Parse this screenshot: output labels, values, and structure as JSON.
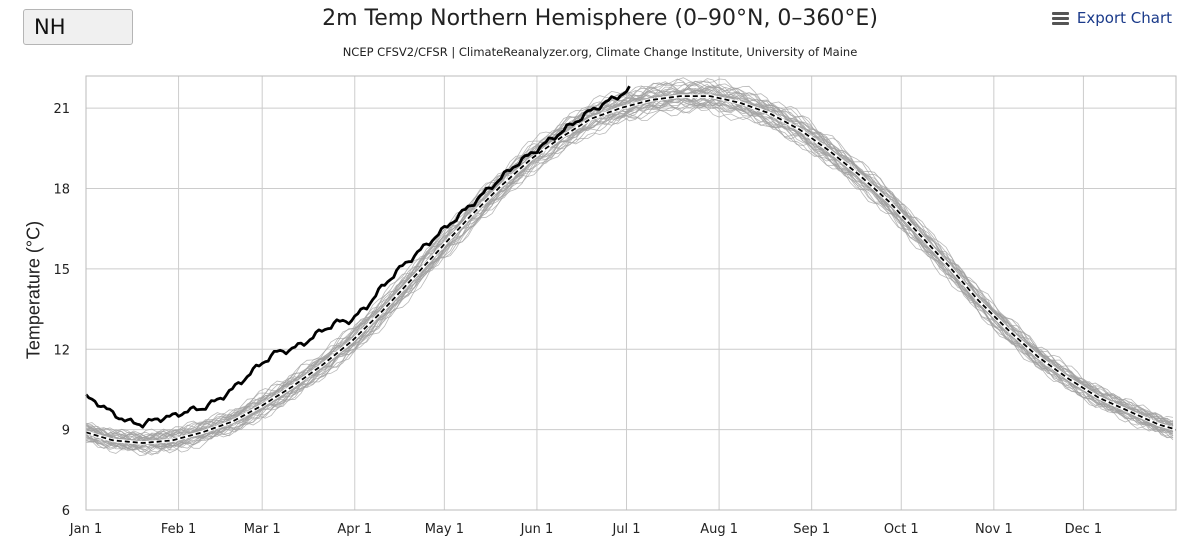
{
  "region_select": {
    "value": "NH"
  },
  "export_label": "Export Chart",
  "icons": {
    "export_menu": "hamburger-menu-icon"
  },
  "chart_data": {
    "type": "line",
    "title": "2m Temp Northern Hemisphere (0–90°N, 0–360°E)",
    "subtitle": "NCEP CFSV2/CFSR | ClimateReanalyzer.org, Climate Change Institute, University of Maine",
    "xlabel": "",
    "ylabel": "Temperature (°C)",
    "x_unit": "day of year",
    "xlim": [
      1,
      366
    ],
    "ylim": [
      6,
      22.2
    ],
    "yticks": [
      6,
      9,
      12,
      15,
      18,
      21
    ],
    "xtick_labels": [
      "Jan 1",
      "Feb 1",
      "Mar 1",
      "Apr 1",
      "May 1",
      "Jun 1",
      "Jul 1",
      "Aug 1",
      "Sep 1",
      "Oct 1",
      "Nov 1",
      "Dec 1"
    ],
    "xtick_days": [
      1,
      32,
      60,
      91,
      121,
      152,
      182,
      213,
      244,
      274,
      305,
      335
    ],
    "grid": true,
    "legend": "none",
    "colors": {
      "current_year": "#000000",
      "mean": "#000000",
      "past_years": "#a0a0a0",
      "grid": "#cccccc"
    },
    "series": [
      {
        "style": "solid-thick",
        "x": [
          1,
          5,
          10,
          15,
          20,
          25,
          30,
          35,
          40,
          45,
          50,
          55,
          60,
          65,
          70,
          75,
          80,
          85,
          90,
          95,
          100,
          105,
          110,
          115,
          120,
          125,
          130,
          135,
          140,
          145,
          150,
          155,
          160,
          165,
          170,
          175,
          180,
          183
        ],
        "values": [
          10.2,
          10.0,
          9.6,
          9.3,
          9.2,
          9.4,
          9.5,
          9.7,
          9.8,
          10.1,
          10.5,
          11.0,
          11.5,
          11.9,
          12.0,
          12.3,
          12.7,
          13.0,
          13.1,
          13.6,
          14.3,
          14.9,
          15.4,
          15.9,
          16.4,
          16.9,
          17.4,
          17.9,
          18.4,
          18.9,
          19.3,
          19.7,
          20.1,
          20.5,
          20.9,
          21.2,
          21.5,
          21.7
        ]
      },
      {
        "style": "dashed",
        "x": [
          1,
          10,
          20,
          30,
          40,
          50,
          60,
          70,
          80,
          90,
          100,
          110,
          120,
          130,
          140,
          150,
          160,
          170,
          180,
          190,
          200,
          210,
          220,
          230,
          240,
          250,
          260,
          270,
          280,
          290,
          300,
          310,
          320,
          330,
          340,
          350,
          360,
          366
        ],
        "values": [
          8.9,
          8.6,
          8.5,
          8.6,
          8.9,
          9.3,
          9.9,
          10.6,
          11.4,
          12.3,
          13.4,
          14.6,
          15.8,
          17.0,
          18.1,
          19.1,
          19.9,
          20.6,
          21.0,
          21.3,
          21.45,
          21.45,
          21.2,
          20.8,
          20.2,
          19.4,
          18.5,
          17.5,
          16.3,
          15.1,
          13.8,
          12.7,
          11.7,
          10.9,
          10.2,
          9.7,
          9.2,
          9.0
        ]
      }
    ]
  }
}
